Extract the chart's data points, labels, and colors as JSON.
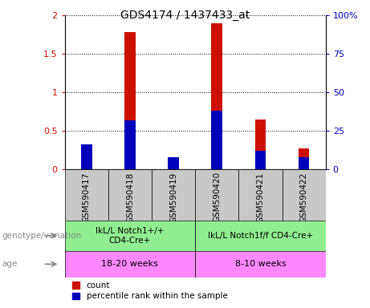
{
  "title": "GDS4174 / 1437433_at",
  "samples": [
    "GSM590417",
    "GSM590418",
    "GSM590419",
    "GSM590420",
    "GSM590421",
    "GSM590422"
  ],
  "count_values": [
    0.13,
    1.78,
    0.14,
    1.9,
    0.65,
    0.27
  ],
  "percentile_values": [
    16,
    32,
    8,
    38,
    12,
    8
  ],
  "ylim_left": [
    0,
    2
  ],
  "ylim_right": [
    0,
    100
  ],
  "yticks_left": [
    0,
    0.5,
    1.0,
    1.5,
    2.0
  ],
  "ytick_labels_left": [
    "0",
    "0.5",
    "1",
    "1.5",
    "2"
  ],
  "yticks_right": [
    0,
    25,
    50,
    75,
    100
  ],
  "ytick_labels_right": [
    "0",
    "25",
    "50",
    "75",
    "100%"
  ],
  "genotype_labels": [
    "IkL/L Notch1+/+\nCD4-Cre+",
    "IkL/L Notch1f/f CD4-Cre+"
  ],
  "age_labels": [
    "18-20 weeks",
    "8-10 weeks"
  ],
  "genotype_color": "#90EE90",
  "age_color": "#FF88FF",
  "sample_bg_color": "#C8C8C8",
  "bar_color_count": "#CC1100",
  "bar_color_percentile": "#0000BB",
  "left_label_genotype": "genotype/variation",
  "left_label_age": "age",
  "legend_count": "count",
  "legend_percentile": "percentile rank within the sample",
  "bar_width": 0.25
}
